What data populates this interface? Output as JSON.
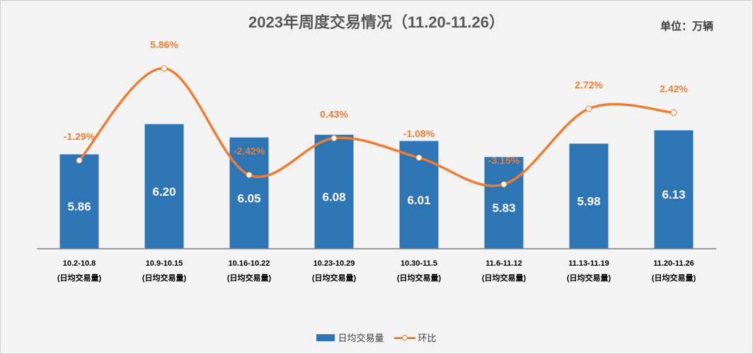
{
  "title": "2023年周度交易情况（11.20-11.26）",
  "unit_label": "单位：万辆",
  "legend": {
    "bar_label": "日均交易量",
    "line_label": "环比"
  },
  "colors": {
    "bar": "#2E75B6",
    "line": "#ED7D31",
    "background": "#F3F3F3"
  },
  "chart_data": {
    "type": "bar",
    "title": "2023年周度交易情况（11.20-11.26）",
    "categories": [
      "10.2-10.8",
      "10.9-10.15",
      "10.16-10.22",
      "10.23-10.29",
      "10.30-11.5",
      "11.6-11.12",
      "11.13-11.19",
      "11.20-11.26"
    ],
    "category_sublabel": "(日均交易量)",
    "series": [
      {
        "name": "日均交易量",
        "type": "bar",
        "values": [
          5.86,
          6.2,
          6.05,
          6.08,
          6.01,
          5.83,
          5.98,
          6.13
        ],
        "labels": [
          "5.86",
          "6.20",
          "6.05",
          "6.08",
          "6.01",
          "5.83",
          "5.98",
          "6.13"
        ]
      },
      {
        "name": "环比",
        "type": "line",
        "values": [
          -1.29,
          5.86,
          -2.42,
          0.43,
          -1.08,
          -3.15,
          2.72,
          2.42
        ],
        "labels": [
          "-1.29%",
          "5.86%",
          "-2.42%",
          "0.43%",
          "-1.08%",
          "-3.15%",
          "2.72%",
          "2.42%"
        ]
      }
    ],
    "bar_axis_range": [
      4.8,
      6.3
    ],
    "line_axis_range": [
      -7,
      7
    ],
    "grid": false,
    "legend_position": "bottom"
  }
}
